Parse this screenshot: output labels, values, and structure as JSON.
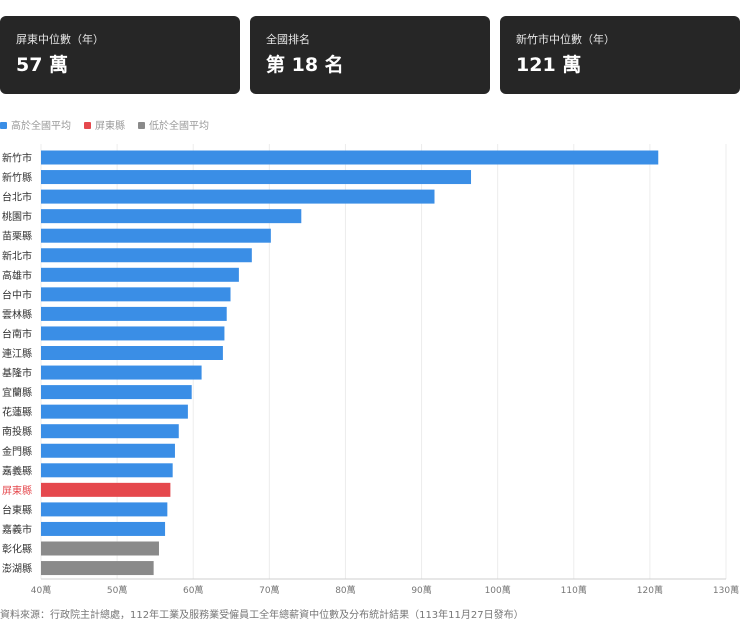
{
  "cards": [
    {
      "label": "屏東中位數（年）",
      "value": "57 萬"
    },
    {
      "label": "全國排名",
      "value": "第 18 名"
    },
    {
      "label": "新竹市中位數（年）",
      "value": "121 萬"
    }
  ],
  "legend": [
    {
      "label": "高於全國平均",
      "color": "#3a8ee6"
    },
    {
      "label": "屏東縣",
      "color": "#e5484d"
    },
    {
      "label": "低於全國平均",
      "color": "#8a8a8a"
    }
  ],
  "source": "資料來源：行政院主計總處，112年工業及服務業受僱員工全年總薪資中位數及分布統計結果（113年11月27日發布）",
  "chart_data": {
    "type": "bar",
    "orientation": "horizontal",
    "unit": "萬",
    "xlim": [
      40,
      130
    ],
    "xticks": [
      40,
      50,
      60,
      70,
      80,
      90,
      100,
      110,
      120,
      130
    ],
    "xtick_labels": [
      "40萬",
      "50萬",
      "60萬",
      "70萬",
      "80萬",
      "90萬",
      "100萬",
      "110萬",
      "120萬",
      "130萬"
    ],
    "grid": true,
    "bars": [
      {
        "category": "新竹市",
        "value": 121.1,
        "group": "above"
      },
      {
        "category": "新竹縣",
        "value": 96.5,
        "group": "above"
      },
      {
        "category": "台北市",
        "value": 91.7,
        "group": "above"
      },
      {
        "category": "桃園市",
        "value": 74.2,
        "group": "above"
      },
      {
        "category": "苗栗縣",
        "value": 70.2,
        "group": "above"
      },
      {
        "category": "新北市",
        "value": 67.7,
        "group": "above"
      },
      {
        "category": "高雄市",
        "value": 66.0,
        "group": "above"
      },
      {
        "category": "台中市",
        "value": 64.9,
        "group": "above"
      },
      {
        "category": "雲林縣",
        "value": 64.4,
        "group": "above"
      },
      {
        "category": "台南市",
        "value": 64.1,
        "group": "above"
      },
      {
        "category": "連江縣",
        "value": 63.9,
        "group": "above"
      },
      {
        "category": "基隆市",
        "value": 61.1,
        "group": "above"
      },
      {
        "category": "宜蘭縣",
        "value": 59.8,
        "group": "above"
      },
      {
        "category": "花蓮縣",
        "value": 59.3,
        "group": "above"
      },
      {
        "category": "南投縣",
        "value": 58.1,
        "group": "above"
      },
      {
        "category": "金門縣",
        "value": 57.6,
        "group": "above"
      },
      {
        "category": "嘉義縣",
        "value": 57.3,
        "group": "above"
      },
      {
        "category": "屏東縣",
        "value": 57.0,
        "group": "highlight"
      },
      {
        "category": "台東縣",
        "value": 56.6,
        "group": "above"
      },
      {
        "category": "嘉義市",
        "value": 56.3,
        "group": "above"
      },
      {
        "category": "彰化縣",
        "value": 55.5,
        "group": "below"
      },
      {
        "category": "澎湖縣",
        "value": 54.8,
        "group": "below"
      }
    ],
    "colors": {
      "above": "#3a8ee6",
      "highlight": "#e5484d",
      "below": "#8a8a8a"
    },
    "highlight_label_color": "#e5484d"
  }
}
